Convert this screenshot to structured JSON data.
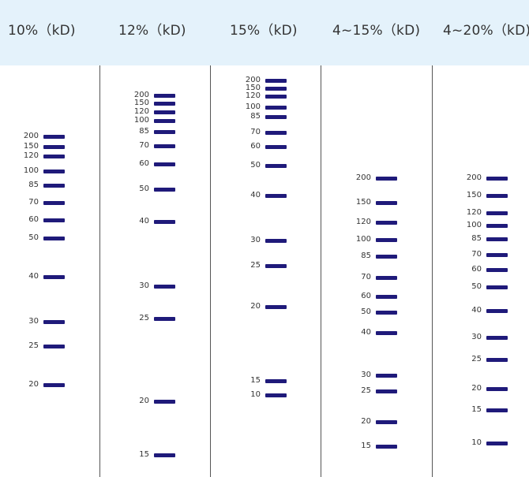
{
  "band_color": "#1f1a7a",
  "header_color": "#e4f2fb",
  "lanes": [
    {
      "title": "10%（kD)",
      "markers": [
        {
          "mw": "200",
          "pos": 0
        },
        {
          "mw": "150",
          "pos": 0.035
        },
        {
          "mw": "120",
          "pos": 0.068
        },
        {
          "mw": "100",
          "pos": 0.12
        },
        {
          "mw": "85",
          "pos": 0.17
        },
        {
          "mw": "70",
          "pos": 0.23
        },
        {
          "mw": "60",
          "pos": 0.29
        },
        {
          "mw": "50",
          "pos": 0.355
        },
        {
          "mw": "40",
          "pos": 0.49
        },
        {
          "mw": "30",
          "pos": 0.645
        },
        {
          "mw": "25",
          "pos": 0.73
        },
        {
          "mw": "20",
          "pos": 0.865
        }
      ]
    },
    {
      "title": "12%（kD)",
      "markers": [
        {
          "mw": "200",
          "pos": 0
        },
        {
          "mw": "150",
          "pos": 0.022
        },
        {
          "mw": "120",
          "pos": 0.045
        },
        {
          "mw": "100",
          "pos": 0.07
        },
        {
          "mw": "85",
          "pos": 0.1
        },
        {
          "mw": "70",
          "pos": 0.14
        },
        {
          "mw": "60",
          "pos": 0.19
        },
        {
          "mw": "50",
          "pos": 0.26
        },
        {
          "mw": "40",
          "pos": 0.35
        },
        {
          "mw": "30",
          "pos": 0.53
        },
        {
          "mw": "25",
          "pos": 0.62
        },
        {
          "mw": "20",
          "pos": 0.85
        },
        {
          "mw": "15",
          "pos": 1.0
        }
      ]
    },
    {
      "title": "15%（kD)",
      "markers": [
        {
          "mw": "200",
          "pos": 0
        },
        {
          "mw": "150",
          "pos": 0.025
        },
        {
          "mw": "120",
          "pos": 0.05
        },
        {
          "mw": "100",
          "pos": 0.085
        },
        {
          "mw": "85",
          "pos": 0.115
        },
        {
          "mw": "70",
          "pos": 0.165
        },
        {
          "mw": "60",
          "pos": 0.21
        },
        {
          "mw": "50",
          "pos": 0.27
        },
        {
          "mw": "40",
          "pos": 0.365
        },
        {
          "mw": "30",
          "pos": 0.51
        },
        {
          "mw": "25",
          "pos": 0.59
        },
        {
          "mw": "20",
          "pos": 0.72
        },
        {
          "mw": "15",
          "pos": 0.955
        },
        {
          "mw": "10",
          "pos": 1.0
        }
      ]
    },
    {
      "title": "4~15%（kD)",
      "markers": [
        {
          "mw": "200",
          "pos": 0
        },
        {
          "mw": "150",
          "pos": 0.09
        },
        {
          "mw": "120",
          "pos": 0.165
        },
        {
          "mw": "100",
          "pos": 0.23
        },
        {
          "mw": "85",
          "pos": 0.29
        },
        {
          "mw": "70",
          "pos": 0.37
        },
        {
          "mw": "60",
          "pos": 0.44
        },
        {
          "mw": "50",
          "pos": 0.5
        },
        {
          "mw": "40",
          "pos": 0.575
        },
        {
          "mw": "30",
          "pos": 0.735
        },
        {
          "mw": "25",
          "pos": 0.795
        },
        {
          "mw": "20",
          "pos": 0.91
        },
        {
          "mw": "15",
          "pos": 1.0
        }
      ]
    },
    {
      "title": "4~20%（kD)",
      "markers": [
        {
          "mw": "200",
          "pos": 0
        },
        {
          "mw": "150",
          "pos": 0.065
        },
        {
          "mw": "120",
          "pos": 0.13
        },
        {
          "mw": "100",
          "pos": 0.18
        },
        {
          "mw": "85",
          "pos": 0.23
        },
        {
          "mw": "70",
          "pos": 0.29
        },
        {
          "mw": "60",
          "pos": 0.345
        },
        {
          "mw": "50",
          "pos": 0.41
        },
        {
          "mw": "40",
          "pos": 0.5
        },
        {
          "mw": "30",
          "pos": 0.6
        },
        {
          "mw": "25",
          "pos": 0.685
        },
        {
          "mw": "20",
          "pos": 0.795
        },
        {
          "mw": "15",
          "pos": 0.875
        },
        {
          "mw": "10",
          "pos": 1.0
        }
      ]
    }
  ]
}
